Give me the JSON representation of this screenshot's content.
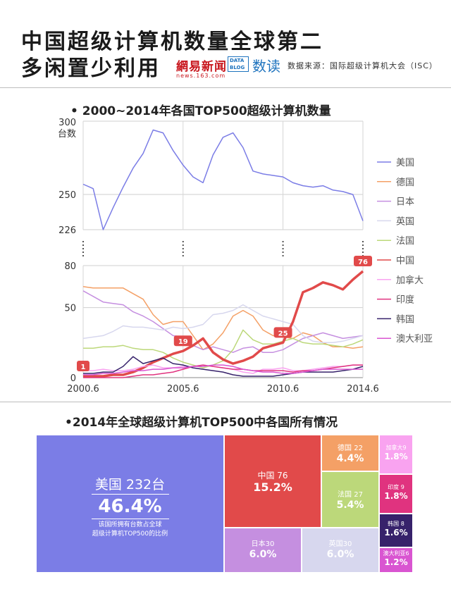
{
  "header": {
    "title_line1": "中国超级计算机数量全球第二",
    "title_line2": "多闲置少利用",
    "logo_netease_cn": "網易新闻",
    "logo_netease_en": "news.163.com",
    "logo_datablog": "DATA BLOG",
    "logo_shudu": "数读",
    "source": "数据来源：国际超级计算机大会（ISC）"
  },
  "line_section_title": "• 2000~2014年各国TOP500超级计算机数量",
  "bar_section_title": "•2014年全球超级计算机TOP500中各国所有情况",
  "colors": {
    "美国": "#7b7de6",
    "德国": "#f4a066",
    "日本": "#c58fe0",
    "英国": "#d7d7ee",
    "法国": "#bcd87a",
    "中国": "#e14a4a",
    "加拿大": "#f9a3f0",
    "印度": "#e0337f",
    "韩国": "#37226b",
    "澳大利亚": "#d955d1"
  },
  "chart_data": [
    {
      "type": "line",
      "title": "2000~2014年各国TOP500超级计算机数量",
      "ylabel_unit": "台数",
      "x_ticks": [
        "2000.6",
        "2005.6",
        "2010.6",
        "2014.6"
      ],
      "x": [
        2000.5,
        2001.0,
        2001.5,
        2002.0,
        2002.5,
        2003.0,
        2003.5,
        2004.0,
        2004.5,
        2005.0,
        2005.5,
        2006.0,
        2006.5,
        2007.0,
        2007.5,
        2008.0,
        2008.5,
        2009.0,
        2009.5,
        2010.0,
        2010.5,
        2011.0,
        2011.5,
        2012.0,
        2012.5,
        2013.0,
        2013.5,
        2014.0,
        2014.5
      ],
      "y_axis_break": {
        "upper_ticks": [
          226,
          250,
          300
        ],
        "lower_ticks": [
          0,
          50,
          80
        ]
      },
      "ylim_upper": [
        226,
        300
      ],
      "ylim_lower": [
        0,
        80
      ],
      "series": [
        {
          "name": "美国",
          "values": [
            257,
            254,
            226,
            241,
            255,
            268,
            278,
            294,
            292,
            280,
            270,
            262,
            258,
            277,
            289,
            292,
            282,
            266,
            264,
            263,
            262,
            258,
            256,
            255,
            256,
            253,
            252,
            250,
            232
          ]
        },
        {
          "name": "德国",
          "values": [
            65,
            64,
            64,
            64,
            64,
            60,
            56,
            45,
            38,
            40,
            40,
            30,
            20,
            24,
            32,
            44,
            48,
            44,
            34,
            30,
            29,
            28,
            32,
            30,
            25,
            22,
            22,
            21,
            22
          ]
        },
        {
          "name": "日本",
          "values": [
            62,
            58,
            54,
            53,
            52,
            47,
            44,
            40,
            35,
            30,
            29,
            23,
            20,
            22,
            20,
            18,
            21,
            22,
            18,
            18,
            20,
            24,
            28,
            30,
            32,
            30,
            28,
            29,
            30
          ]
        },
        {
          "name": "英国",
          "values": [
            28,
            29,
            30,
            33,
            37,
            36,
            36,
            35,
            34,
            36,
            35,
            36,
            38,
            45,
            46,
            48,
            52,
            48,
            44,
            42,
            40,
            38,
            30,
            26,
            25,
            25,
            26,
            28,
            30
          ]
        },
        {
          "name": "法国",
          "values": [
            21,
            21,
            22,
            22,
            23,
            21,
            20,
            20,
            18,
            14,
            11,
            9,
            7,
            9,
            12,
            20,
            34,
            27,
            24,
            24,
            26,
            28,
            25,
            24,
            24,
            23,
            22,
            24,
            27
          ]
        },
        {
          "name": "中国",
          "values": [
            1,
            1,
            1,
            2,
            2,
            4,
            7,
            11,
            14,
            17,
            19,
            23,
            28,
            18,
            13,
            10,
            12,
            15,
            21,
            23,
            25,
            40,
            61,
            64,
            68,
            66,
            63,
            70,
            76
          ]
        },
        {
          "name": "加拿大",
          "values": [
            5,
            5,
            6,
            5,
            5,
            6,
            8,
            9,
            7,
            7,
            8,
            8,
            9,
            8,
            7,
            6,
            4,
            3,
            6,
            6,
            7,
            5,
            5,
            6,
            7,
            8,
            8,
            9,
            9
          ]
        },
        {
          "name": "印度",
          "values": [
            0,
            0,
            0,
            0,
            0,
            1,
            2,
            2,
            3,
            4,
            6,
            8,
            9,
            8,
            7,
            6,
            6,
            5,
            5,
            5,
            5,
            4,
            5,
            5,
            6,
            7,
            8,
            9,
            9
          ]
        },
        {
          "name": "韩国",
          "values": [
            3,
            3,
            4,
            4,
            8,
            15,
            10,
            12,
            14,
            10,
            9,
            7,
            6,
            5,
            4,
            2,
            1,
            1,
            1,
            1,
            2,
            3,
            4,
            4,
            4,
            4,
            5,
            6,
            8
          ]
        },
        {
          "name": "澳大利亚",
          "values": [
            2,
            2,
            3,
            3,
            4,
            5,
            5,
            6,
            6,
            7,
            7,
            8,
            8,
            9,
            9,
            8,
            6,
            5,
            4,
            4,
            3,
            3,
            4,
            5,
            6,
            6,
            6,
            6,
            6
          ]
        }
      ],
      "point_labels": [
        {
          "series": "中国",
          "x": 2000.5,
          "label": "1"
        },
        {
          "series": "中国",
          "x": 2005.5,
          "label": "19"
        },
        {
          "series": "中国",
          "x": 2010.5,
          "label": "25"
        },
        {
          "series": "中国",
          "x": 2014.5,
          "label": "76"
        }
      ],
      "legend_position": "right",
      "grid": true
    },
    {
      "type": "treemap",
      "title": "2014年全球超级计算机TOP500中各国所有情况",
      "items": [
        {
          "name": "美国",
          "count": 232,
          "percent": 46.4,
          "label": "美国 232台",
          "pct_label": "46.4%",
          "note_line1": "该国所拥有台数占全球",
          "note_line2": "超级计算机TOP500的比例"
        },
        {
          "name": "中国",
          "count": 76,
          "percent": 15.2,
          "label": "中国  76",
          "pct_label": "15.2%"
        },
        {
          "name": "德国",
          "count": 22,
          "percent": 4.4,
          "label": "德国 22",
          "pct_label": "4.4%"
        },
        {
          "name": "法国",
          "count": 27,
          "percent": 5.4,
          "label": "法国 27",
          "pct_label": "5.4%"
        },
        {
          "name": "日本",
          "count": 30,
          "percent": 6.0,
          "label": "日本30",
          "pct_label": "6.0%"
        },
        {
          "name": "英国",
          "count": 30,
          "percent": 6.0,
          "label": "英国30",
          "pct_label": "6.0%"
        },
        {
          "name": "加拿大",
          "count": 9,
          "percent": 1.8,
          "label": "加拿大9",
          "pct_label": "1.8%"
        },
        {
          "name": "印度",
          "count": 9,
          "percent": 1.8,
          "label": "印度  9",
          "pct_label": "1.8%"
        },
        {
          "name": "韩国",
          "count": 8,
          "percent": 1.6,
          "label": "韩国  8",
          "pct_label": "1.6%"
        },
        {
          "name": "澳大利亚",
          "count": 6,
          "percent": 1.2,
          "label": "澳大利亚6",
          "pct_label": "1.2%"
        }
      ]
    }
  ]
}
